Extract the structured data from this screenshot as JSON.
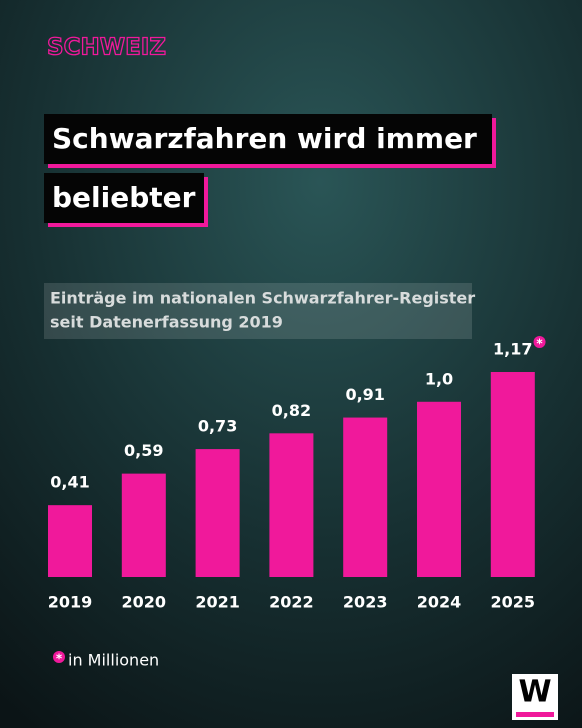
{
  "tag": "SCHWEIZ",
  "brand": "W",
  "chart_data": {
    "type": "bar",
    "title_lines": [
      "Schwarzfahren wird immer",
      "beliebter"
    ],
    "subtitle_lines": [
      "Einträge im nationalen Schwarzfahrer-Register",
      "seit Datenerfassung 2019"
    ],
    "categories": [
      "2019",
      "2020",
      "2021",
      "2022",
      "2023",
      "2024",
      "2025"
    ],
    "values": [
      0.41,
      0.59,
      0.73,
      0.82,
      0.91,
      1.0,
      1.17
    ],
    "value_labels": [
      "0,41",
      "0,59",
      "0,73",
      "0,82",
      "0,91",
      "1,0",
      "1,17"
    ],
    "color": "#f0199b",
    "footnote": {
      "marker": "*",
      "text": "in Millionen"
    }
  }
}
